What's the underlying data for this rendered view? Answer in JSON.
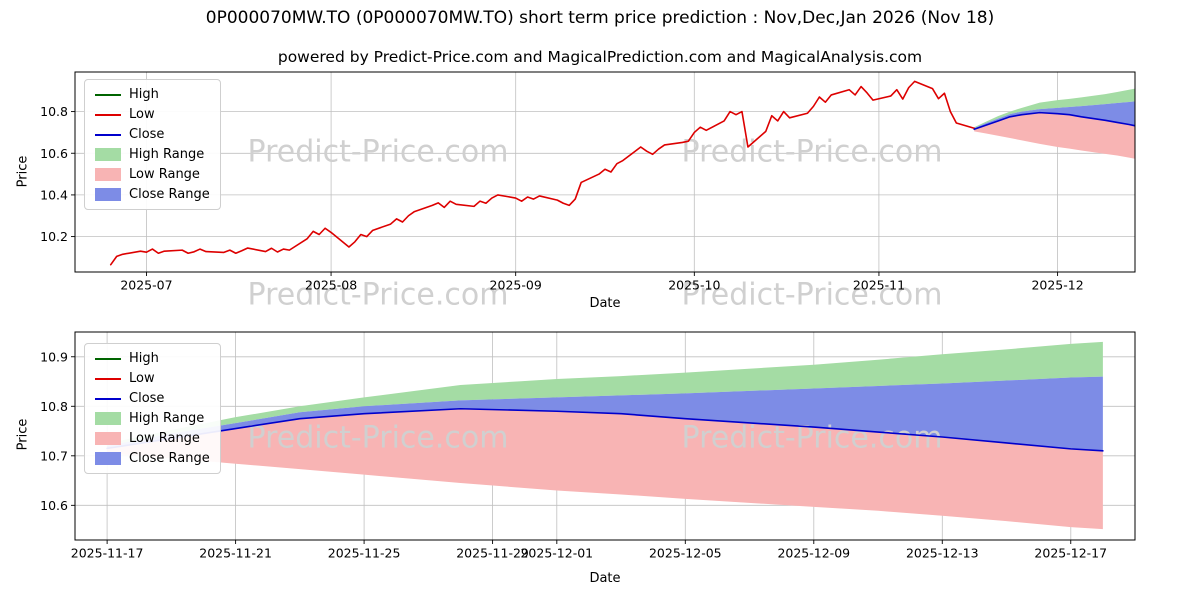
{
  "watermark": {
    "text": "Predict-Price.com"
  },
  "colors": {
    "high_line": "#006400",
    "low_line": "#dd0000",
    "close_line": "#0000cc",
    "high_range": "#a4dca4",
    "low_range": "#f8b4b4",
    "close_range": "#7d8ce6",
    "grid": "#c0c0c0",
    "axis": "#000000",
    "watermark": "#d0d0d0"
  },
  "legend": [
    {
      "label": "High",
      "type": "line",
      "color_key": "high_line"
    },
    {
      "label": "Low",
      "type": "line",
      "color_key": "low_line"
    },
    {
      "label": "Close",
      "type": "line",
      "color_key": "close_line"
    },
    {
      "label": "High Range",
      "type": "patch",
      "color_key": "high_range"
    },
    {
      "label": "Low Range",
      "type": "patch",
      "color_key": "low_range"
    },
    {
      "label": "Close Range",
      "type": "patch",
      "color_key": "close_range"
    }
  ],
  "forecast": {
    "dates": [
      "2025-11-17",
      "2025-11-19",
      "2025-11-21",
      "2025-11-23",
      "2025-11-25",
      "2025-11-28",
      "2025-12-01",
      "2025-12-03",
      "2025-12-05",
      "2025-12-09",
      "2025-12-11",
      "2025-12-13",
      "2025-12-15",
      "2025-12-17",
      "2025-12-18"
    ],
    "close": [
      10.715,
      10.735,
      10.755,
      10.775,
      10.785,
      10.795,
      10.79,
      10.785,
      10.775,
      10.758,
      10.748,
      10.738,
      10.726,
      10.714,
      10.71
    ],
    "close_upper": [
      10.72,
      10.745,
      10.766,
      10.788,
      10.8,
      10.812,
      10.818,
      10.822,
      10.826,
      10.836,
      10.841,
      10.846,
      10.852,
      10.858,
      10.86
    ],
    "high_upper": [
      10.725,
      10.752,
      10.778,
      10.8,
      10.818,
      10.843,
      10.855,
      10.861,
      10.868,
      10.884,
      10.894,
      10.905,
      10.915,
      10.926,
      10.93
    ],
    "low_lower": [
      10.705,
      10.695,
      10.684,
      10.673,
      10.662,
      10.645,
      10.63,
      10.622,
      10.613,
      10.597,
      10.589,
      10.579,
      10.568,
      10.556,
      10.552
    ]
  },
  "chart_data": [
    {
      "type": "line",
      "title": "0P000070MW.TO (0P000070MW.TO) short term price prediction : Nov,Dec,Jan 2026 (Nov 18)",
      "subtitle": "powered by Predict-Price.com and MagicalPrediction.com and MagicalAnalysis.com",
      "xlabel": "Date",
      "ylabel": "Price",
      "xlim": [
        "2025-06-19",
        "2025-12-14"
      ],
      "ylim": [
        10.03,
        10.99
      ],
      "yticks": [
        10.2,
        10.4,
        10.6,
        10.8
      ],
      "xticks": [
        {
          "date": "2025-07-01",
          "label": "2025-07"
        },
        {
          "date": "2025-08-01",
          "label": "2025-08"
        },
        {
          "date": "2025-09-01",
          "label": "2025-09"
        },
        {
          "date": "2025-10-01",
          "label": "2025-10"
        },
        {
          "date": "2025-11-01",
          "label": "2025-11"
        },
        {
          "date": "2025-12-01",
          "label": "2025-12"
        }
      ],
      "grid": true,
      "legend_position": "upper-left",
      "history": {
        "name": "Low",
        "dates": [
          "2025-06-25",
          "2025-06-26",
          "2025-06-27",
          "2025-06-30",
          "2025-07-01",
          "2025-07-02",
          "2025-07-03",
          "2025-07-04",
          "2025-07-07",
          "2025-07-08",
          "2025-07-09",
          "2025-07-10",
          "2025-07-11",
          "2025-07-14",
          "2025-07-15",
          "2025-07-16",
          "2025-07-17",
          "2025-07-18",
          "2025-07-21",
          "2025-07-22",
          "2025-07-23",
          "2025-07-24",
          "2025-07-25",
          "2025-07-28",
          "2025-07-29",
          "2025-07-30",
          "2025-07-31",
          "2025-08-01",
          "2025-08-04",
          "2025-08-05",
          "2025-08-06",
          "2025-08-07",
          "2025-08-08",
          "2025-08-11",
          "2025-08-12",
          "2025-08-13",
          "2025-08-14",
          "2025-08-15",
          "2025-08-18",
          "2025-08-19",
          "2025-08-20",
          "2025-08-21",
          "2025-08-22",
          "2025-08-25",
          "2025-08-26",
          "2025-08-27",
          "2025-08-28",
          "2025-08-29",
          "2025-09-01",
          "2025-09-02",
          "2025-09-03",
          "2025-09-04",
          "2025-09-05",
          "2025-09-08",
          "2025-09-09",
          "2025-09-10",
          "2025-09-11",
          "2025-09-12",
          "2025-09-15",
          "2025-09-16",
          "2025-09-17",
          "2025-09-18",
          "2025-09-19",
          "2025-09-22",
          "2025-09-23",
          "2025-09-24",
          "2025-09-25",
          "2025-09-26",
          "2025-09-29",
          "2025-09-30",
          "2025-10-01",
          "2025-10-02",
          "2025-10-03",
          "2025-10-06",
          "2025-10-07",
          "2025-10-08",
          "2025-10-09",
          "2025-10-10",
          "2025-10-13",
          "2025-10-14",
          "2025-10-15",
          "2025-10-16",
          "2025-10-17",
          "2025-10-20",
          "2025-10-21",
          "2025-10-22",
          "2025-10-23",
          "2025-10-24",
          "2025-10-27",
          "2025-10-28",
          "2025-10-29",
          "2025-10-30",
          "2025-10-31",
          "2025-11-03",
          "2025-11-04",
          "2025-11-05",
          "2025-11-06",
          "2025-11-07",
          "2025-11-10",
          "2025-11-11",
          "2025-11-12",
          "2025-11-13",
          "2025-11-14",
          "2025-11-17"
        ],
        "values": [
          10.065,
          10.105,
          10.115,
          10.13,
          10.125,
          10.14,
          10.12,
          10.13,
          10.135,
          10.12,
          10.127,
          10.14,
          10.128,
          10.124,
          10.135,
          10.12,
          10.132,
          10.145,
          10.128,
          10.144,
          10.126,
          10.14,
          10.135,
          10.19,
          10.225,
          10.21,
          10.24,
          10.22,
          10.15,
          10.175,
          10.21,
          10.2,
          10.23,
          10.26,
          10.285,
          10.27,
          10.3,
          10.32,
          10.35,
          10.362,
          10.34,
          10.37,
          10.355,
          10.345,
          10.37,
          10.36,
          10.385,
          10.4,
          10.385,
          10.37,
          10.39,
          10.38,
          10.395,
          10.375,
          10.36,
          10.35,
          10.38,
          10.46,
          10.5,
          10.523,
          10.51,
          10.55,
          10.565,
          10.63,
          10.61,
          10.595,
          10.62,
          10.64,
          10.652,
          10.658,
          10.7,
          10.725,
          10.71,
          10.755,
          10.8,
          10.785,
          10.8,
          10.63,
          10.705,
          10.78,
          10.755,
          10.8,
          10.77,
          10.792,
          10.825,
          10.87,
          10.845,
          10.88,
          10.905,
          10.88,
          10.92,
          10.89,
          10.855,
          10.875,
          10.905,
          10.86,
          10.915,
          10.945,
          10.91,
          10.862,
          10.888,
          10.8,
          10.745,
          10.72
        ]
      },
      "series": [
        {
          "name": "Low",
          "source": "history",
          "color_key": "low_line"
        },
        {
          "name": "Close",
          "source": "forecast_close",
          "color_key": "close_line"
        }
      ],
      "bands": [
        {
          "name": "High Range",
          "upper": "high_upper",
          "lower": "close_upper",
          "color_key": "high_range"
        },
        {
          "name": "Close Range",
          "upper": "close_upper",
          "lower": "close",
          "color_key": "close_range"
        },
        {
          "name": "Low Range",
          "upper": "close",
          "lower": "low_lower",
          "color_key": "low_range"
        }
      ]
    },
    {
      "type": "line",
      "title": "",
      "xlabel": "Date",
      "ylabel": "Price",
      "xlim": [
        "2025-11-16",
        "2025-12-19"
      ],
      "ylim": [
        10.53,
        10.95
      ],
      "yticks": [
        10.6,
        10.7,
        10.8,
        10.9
      ],
      "xticks": [
        {
          "date": "2025-11-17",
          "label": "2025-11-17"
        },
        {
          "date": "2025-11-21",
          "label": "2025-11-21"
        },
        {
          "date": "2025-11-25",
          "label": "2025-11-25"
        },
        {
          "date": "2025-11-29",
          "label": "2025-11-29"
        },
        {
          "date": "2025-12-01",
          "label": "2025-12-01"
        },
        {
          "date": "2025-12-05",
          "label": "2025-12-05"
        },
        {
          "date": "2025-12-09",
          "label": "2025-12-09"
        },
        {
          "date": "2025-12-13",
          "label": "2025-12-13"
        },
        {
          "date": "2025-12-17",
          "label": "2025-12-17"
        }
      ],
      "grid": true,
      "legend_position": "upper-left",
      "series": [
        {
          "name": "Close",
          "source": "forecast_close",
          "color_key": "close_line"
        }
      ],
      "bands": [
        {
          "name": "High Range",
          "upper": "high_upper",
          "lower": "close_upper",
          "color_key": "high_range"
        },
        {
          "name": "Close Range",
          "upper": "close_upper",
          "lower": "close",
          "color_key": "close_range"
        },
        {
          "name": "Low Range",
          "upper": "close",
          "lower": "low_lower",
          "color_key": "low_range"
        }
      ]
    }
  ]
}
